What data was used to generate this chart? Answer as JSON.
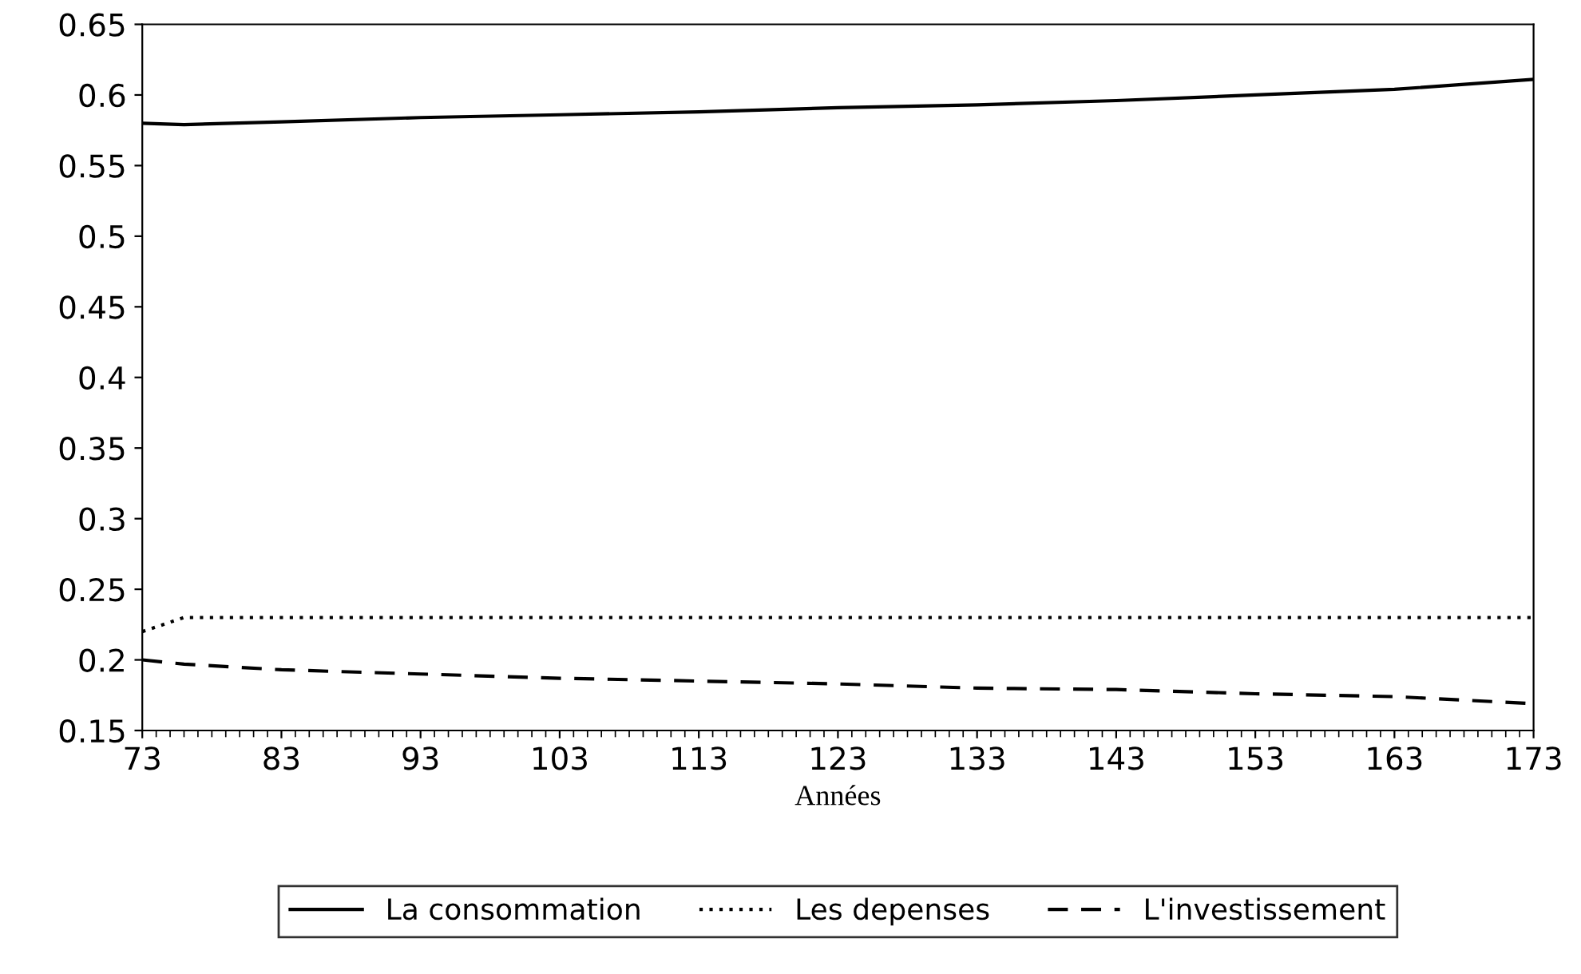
{
  "chart_data": {
    "type": "line",
    "xlabel": "Années",
    "x": [
      73,
      76,
      83,
      93,
      103,
      113,
      123,
      133,
      143,
      153,
      163,
      173
    ],
    "series": [
      {
        "name": "La consommation",
        "color": "#000000",
        "line_style": "solid",
        "values": [
          0.58,
          0.579,
          0.581,
          0.584,
          0.586,
          0.588,
          0.591,
          0.593,
          0.596,
          0.6,
          0.604,
          0.611
        ]
      },
      {
        "name": "Les depenses",
        "color": "#000000",
        "line_style": "dotted",
        "values": [
          0.22,
          0.23,
          0.23,
          0.23,
          0.23,
          0.23,
          0.23,
          0.23,
          0.23,
          0.23,
          0.23,
          0.23
        ]
      },
      {
        "name": "L'investissement",
        "color": "#000000",
        "line_style": "dashed",
        "values": [
          0.2,
          0.197,
          0.193,
          0.19,
          0.187,
          0.185,
          0.183,
          0.18,
          0.179,
          0.176,
          0.174,
          0.169
        ]
      }
    ],
    "xlim": [
      73,
      173
    ],
    "xticks": [
      73,
      83,
      93,
      103,
      113,
      123,
      133,
      143,
      153,
      163,
      173
    ],
    "ylim": [
      0.15,
      0.65
    ],
    "yticks": [
      0.15,
      0.2,
      0.25,
      0.3,
      0.35,
      0.4,
      0.45,
      0.5,
      0.55,
      0.6,
      0.65
    ],
    "grid": false,
    "legend": "bottom"
  }
}
